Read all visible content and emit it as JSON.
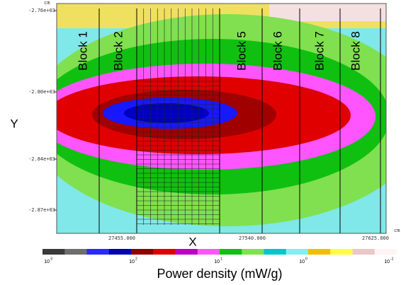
{
  "plot": {
    "unit_top": "cm",
    "unit_bottom": "cm",
    "x_label": "X",
    "y_label": "Y",
    "blocks": [
      "Block 1",
      "Block 2",
      "Block 5",
      "Block 6",
      "Block 7",
      "Block 8"
    ],
    "y_ticks": [
      "-2.76e+03",
      "-2.80e+03",
      "-2.84e+03",
      "-2.87e+03"
    ],
    "x_ticks": [
      "27455.000",
      "27540.000",
      "27625.000"
    ]
  },
  "colorbar": {
    "title": "Power density (mW/g)",
    "colors": [
      "#3a3a3a",
      "#6e6e6e",
      "#2a2aff",
      "#0000b0",
      "#8b0000",
      "#e00000",
      "#c000c0",
      "#ff55ff",
      "#10c010",
      "#80e050",
      "#00c8c8",
      "#80f0f0",
      "#f0c000",
      "#ffff40",
      "#e8c8c8",
      "#fff4f4"
    ],
    "ticks": [
      {
        "base": "10",
        "exponent": "3"
      },
      {
        "base": "10",
        "exponent": "2"
      },
      {
        "base": "10",
        "exponent": "1"
      },
      {
        "base": "10",
        "exponent": "0"
      },
      {
        "base": "10",
        "exponent": "-1"
      }
    ]
  }
}
